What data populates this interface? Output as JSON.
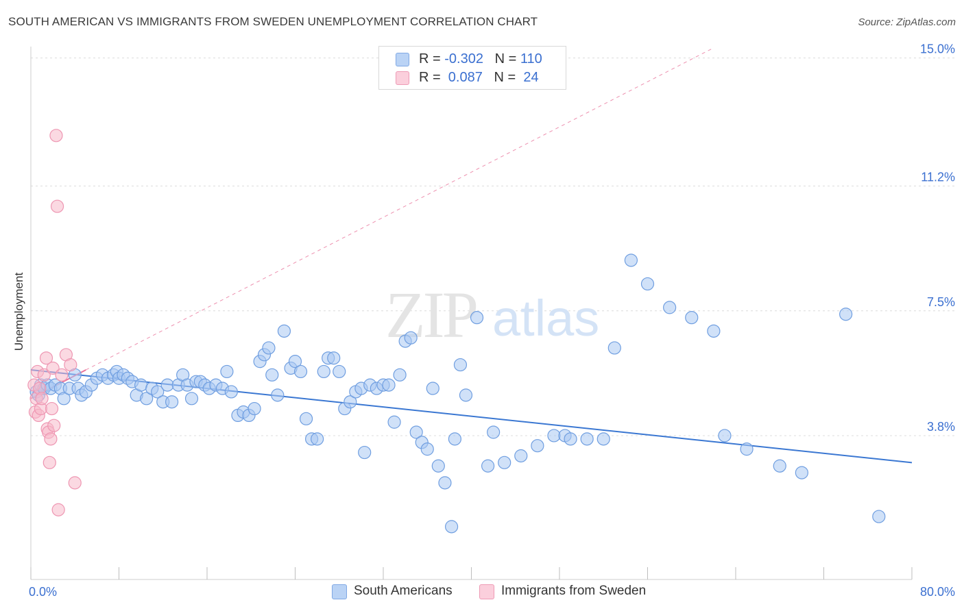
{
  "title": "SOUTH AMERICAN VS IMMIGRANTS FROM SWEDEN UNEMPLOYMENT CORRELATION CHART",
  "source": "Source: ZipAtlas.com",
  "watermark": {
    "zip": "ZIP",
    "atlas": "atlas"
  },
  "legend_top": {
    "rows": [
      {
        "r_label": "R = ",
        "r_value": "-0.302",
        "n_label": "N = ",
        "n_value": "110",
        "color": "#a9c8f3"
      },
      {
        "r_label": "R = ",
        "r_value": " 0.087",
        "n_label": "N = ",
        "n_value": " 24",
        "color": "#f7b9cb"
      }
    ]
  },
  "legend_bottom": [
    {
      "label": "South Americans",
      "color": "#a9c8f3"
    },
    {
      "label": "Immigrants from Sweden",
      "color": "#f7b9cb"
    }
  ],
  "chart_data": {
    "type": "scatter",
    "xlabel": "",
    "ylabel": "Unemployment",
    "xlim": [
      0,
      80
    ],
    "ylim": [
      0,
      15.5
    ],
    "x_tick_labels": [
      {
        "value": 0,
        "label": "0.0%"
      },
      {
        "value": 80,
        "label": "80.0%"
      }
    ],
    "y_tick_labels": [
      {
        "value": 3.8,
        "label": "3.8%"
      },
      {
        "value": 7.5,
        "label": "7.5%"
      },
      {
        "value": 11.2,
        "label": "11.2%"
      },
      {
        "value": 15.0,
        "label": "15.0%"
      }
    ],
    "x_minor_ticks": [
      0,
      8,
      16,
      24,
      32,
      40,
      48,
      56,
      64,
      72,
      80
    ],
    "grid": "horizontal dashed",
    "colors": {
      "blue": "#3a77d2",
      "blue_fill": "#a9c8f3",
      "pink": "#e8739a",
      "pink_fill": "#f7b9cb",
      "tick_label": "#3a6fd0"
    },
    "series": [
      {
        "name": "South Americans",
        "color": "#a9c8f3",
        "points": [
          [
            0.5,
            5.1
          ],
          [
            0.7,
            5.0
          ],
          [
            0.9,
            5.3
          ],
          [
            1.2,
            5.2
          ],
          [
            1.5,
            5.3
          ],
          [
            1.8,
            5.2
          ],
          [
            2.2,
            5.3
          ],
          [
            2.7,
            5.2
          ],
          [
            3.0,
            4.9
          ],
          [
            3.5,
            5.2
          ],
          [
            4.0,
            5.6
          ],
          [
            4.3,
            5.2
          ],
          [
            4.6,
            5.0
          ],
          [
            5.0,
            5.1
          ],
          [
            5.5,
            5.3
          ],
          [
            6.0,
            5.5
          ],
          [
            6.5,
            5.6
          ],
          [
            7.0,
            5.5
          ],
          [
            7.5,
            5.6
          ],
          [
            7.8,
            5.7
          ],
          [
            8.0,
            5.5
          ],
          [
            8.4,
            5.6
          ],
          [
            8.8,
            5.5
          ],
          [
            9.2,
            5.4
          ],
          [
            9.6,
            5.0
          ],
          [
            10.0,
            5.3
          ],
          [
            10.5,
            4.9
          ],
          [
            11.0,
            5.2
          ],
          [
            11.5,
            5.1
          ],
          [
            12.0,
            4.8
          ],
          [
            12.4,
            5.3
          ],
          [
            12.8,
            4.8
          ],
          [
            13.4,
            5.3
          ],
          [
            13.8,
            5.6
          ],
          [
            14.2,
            5.3
          ],
          [
            14.6,
            4.9
          ],
          [
            15.0,
            5.4
          ],
          [
            15.4,
            5.4
          ],
          [
            15.8,
            5.3
          ],
          [
            16.2,
            5.2
          ],
          [
            16.8,
            5.3
          ],
          [
            17.4,
            5.2
          ],
          [
            17.8,
            5.7
          ],
          [
            18.2,
            5.1
          ],
          [
            18.8,
            4.4
          ],
          [
            19.3,
            4.5
          ],
          [
            19.8,
            4.4
          ],
          [
            20.3,
            4.6
          ],
          [
            20.8,
            6.0
          ],
          [
            21.2,
            6.2
          ],
          [
            21.6,
            6.4
          ],
          [
            21.9,
            5.6
          ],
          [
            22.4,
            5.0
          ],
          [
            23.0,
            6.9
          ],
          [
            23.6,
            5.8
          ],
          [
            24.0,
            6.0
          ],
          [
            24.5,
            5.7
          ],
          [
            25.0,
            4.3
          ],
          [
            25.5,
            3.7
          ],
          [
            26.0,
            3.7
          ],
          [
            26.6,
            5.7
          ],
          [
            27.0,
            6.1
          ],
          [
            27.5,
            6.1
          ],
          [
            28.0,
            5.7
          ],
          [
            28.5,
            4.6
          ],
          [
            29.0,
            4.8
          ],
          [
            29.5,
            5.1
          ],
          [
            30.0,
            5.2
          ],
          [
            30.3,
            3.3
          ],
          [
            30.8,
            5.3
          ],
          [
            31.4,
            5.2
          ],
          [
            32.0,
            5.3
          ],
          [
            32.5,
            5.3
          ],
          [
            33.0,
            4.2
          ],
          [
            33.5,
            5.6
          ],
          [
            34.0,
            6.6
          ],
          [
            34.5,
            6.7
          ],
          [
            35.0,
            3.9
          ],
          [
            35.5,
            3.6
          ],
          [
            36.0,
            3.4
          ],
          [
            36.5,
            5.2
          ],
          [
            37.0,
            2.9
          ],
          [
            37.6,
            2.4
          ],
          [
            38.2,
            1.1
          ],
          [
            38.5,
            3.7
          ],
          [
            39.0,
            5.9
          ],
          [
            39.5,
            5.0
          ],
          [
            40.5,
            7.3
          ],
          [
            41.5,
            2.9
          ],
          [
            42.0,
            3.9
          ],
          [
            43.0,
            3.0
          ],
          [
            44.5,
            3.2
          ],
          [
            46.0,
            3.5
          ],
          [
            47.5,
            3.8
          ],
          [
            48.5,
            3.8
          ],
          [
            49.0,
            3.7
          ],
          [
            50.5,
            3.7
          ],
          [
            52.0,
            3.7
          ],
          [
            53.0,
            6.4
          ],
          [
            54.5,
            9.0
          ],
          [
            56.0,
            8.3
          ],
          [
            58.0,
            7.6
          ],
          [
            60.0,
            7.3
          ],
          [
            62.0,
            6.9
          ],
          [
            63.0,
            3.8
          ],
          [
            65.0,
            3.4
          ],
          [
            68.0,
            2.9
          ],
          [
            70.0,
            2.7
          ],
          [
            74.0,
            7.4
          ],
          [
            77.0,
            1.4
          ]
        ]
      },
      {
        "name": "Immigrants from Sweden",
        "color": "#f7b9cb",
        "points": [
          [
            0.3,
            5.3
          ],
          [
            0.4,
            4.5
          ],
          [
            0.5,
            4.9
          ],
          [
            0.6,
            5.7
          ],
          [
            0.7,
            4.4
          ],
          [
            0.8,
            5.2
          ],
          [
            0.9,
            4.6
          ],
          [
            1.0,
            4.9
          ],
          [
            1.2,
            5.6
          ],
          [
            1.4,
            6.1
          ],
          [
            1.5,
            4.0
          ],
          [
            1.6,
            3.9
          ],
          [
            1.7,
            3.0
          ],
          [
            1.8,
            3.7
          ],
          [
            1.9,
            4.6
          ],
          [
            2.0,
            5.8
          ],
          [
            2.1,
            4.1
          ],
          [
            2.3,
            12.7
          ],
          [
            2.4,
            10.6
          ],
          [
            2.5,
            1.6
          ],
          [
            2.8,
            5.6
          ],
          [
            3.2,
            6.2
          ],
          [
            3.6,
            5.9
          ],
          [
            4.0,
            2.4
          ]
        ]
      }
    ],
    "trendlines": [
      {
        "series": "South Americans",
        "style": "solid",
        "x": [
          0,
          80
        ],
        "y": [
          5.75,
          3.0
        ]
      },
      {
        "series": "Immigrants from Sweden",
        "style": "solid",
        "x": [
          0,
          5
        ],
        "y": [
          4.9,
          5.75
        ]
      },
      {
        "series": "Immigrants from Sweden",
        "style": "dashed",
        "x": [
          5,
          62
        ],
        "y": [
          5.75,
          15.3
        ]
      }
    ]
  }
}
